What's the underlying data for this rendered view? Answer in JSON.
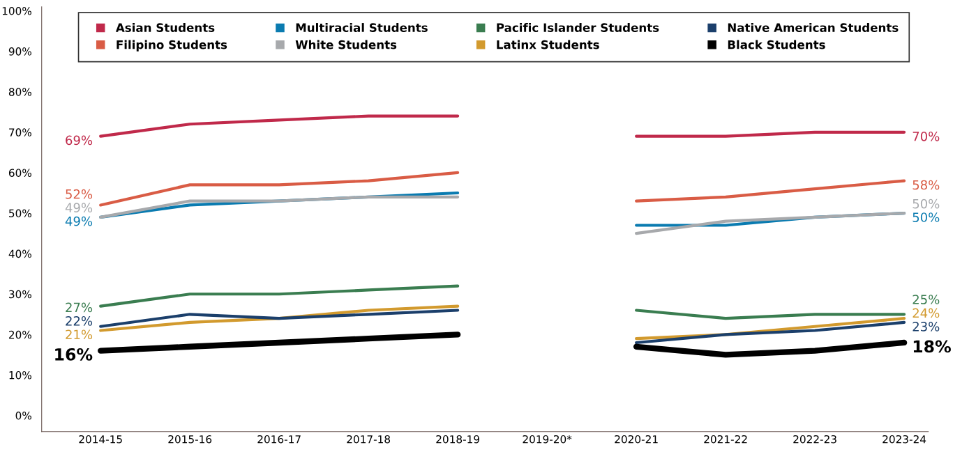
{
  "chart_data": {
    "type": "line",
    "categories": [
      "2014-15",
      "2015-16",
      "2016-17",
      "2017-18",
      "2018-19",
      "2019-20*",
      "2020-21",
      "2021-22",
      "2022-23",
      "2023-24"
    ],
    "series": [
      {
        "name": "Asian Students",
        "color": "#c0294a",
        "values": [
          69,
          72,
          73,
          74,
          74,
          null,
          69,
          69,
          70,
          70
        ],
        "value_labels": [
          "69%",
          null,
          null,
          null,
          null,
          null,
          null,
          null,
          null,
          "70%"
        ]
      },
      {
        "name": "Filipino Students",
        "color": "#d95c45",
        "values": [
          52,
          57,
          57,
          58,
          60,
          null,
          53,
          54,
          56,
          58
        ],
        "value_labels": [
          "52%",
          null,
          null,
          null,
          null,
          null,
          null,
          null,
          null,
          "58%"
        ]
      },
      {
        "name": "Multiracial Students",
        "color": "#0a7bb0",
        "values": [
          49,
          52,
          53,
          54,
          55,
          null,
          47,
          47,
          49,
          50
        ],
        "value_labels": [
          "49%",
          null,
          null,
          null,
          null,
          null,
          null,
          null,
          null,
          "50%"
        ]
      },
      {
        "name": "White Students",
        "color": "#a7a9ac",
        "values": [
          49,
          53,
          53,
          54,
          54,
          null,
          45,
          48,
          49,
          50
        ],
        "value_labels": [
          "49%",
          null,
          null,
          null,
          null,
          null,
          null,
          null,
          null,
          "50%"
        ]
      },
      {
        "name": "Pacific Islander Students",
        "color": "#3a7d50",
        "values": [
          27,
          30,
          30,
          31,
          32,
          null,
          26,
          24,
          25,
          25
        ],
        "value_labels": [
          "27%",
          null,
          null,
          null,
          null,
          null,
          null,
          null,
          null,
          "25%"
        ]
      },
      {
        "name": "Latinx Students",
        "color": "#d29a2e",
        "values": [
          21,
          23,
          24,
          26,
          27,
          null,
          19,
          20,
          22,
          24
        ],
        "value_labels": [
          "21%",
          null,
          null,
          null,
          null,
          null,
          null,
          null,
          null,
          "24%"
        ]
      },
      {
        "name": "Native American Students",
        "color": "#1b3f6b",
        "values": [
          22,
          25,
          24,
          25,
          26,
          null,
          18,
          20,
          21,
          23
        ],
        "value_labels": [
          "22%",
          null,
          null,
          null,
          null,
          null,
          null,
          null,
          null,
          "23%"
        ]
      },
      {
        "name": "Black Students",
        "color": "#000000",
        "values": [
          16,
          17,
          18,
          19,
          20,
          null,
          17,
          15,
          16,
          18
        ],
        "value_labels": [
          "16%",
          null,
          null,
          null,
          null,
          null,
          null,
          null,
          null,
          "18%"
        ]
      }
    ],
    "ylim": [
      -4,
      101
    ],
    "yticks": [
      {
        "value": 0,
        "label": "0%"
      },
      {
        "value": 10,
        "label": "10%"
      },
      {
        "value": 20,
        "label": "20%"
      },
      {
        "value": 30,
        "label": "30%"
      },
      {
        "value": 40,
        "label": "40%"
      },
      {
        "value": 50,
        "label": "50%"
      },
      {
        "value": 60,
        "label": "60%"
      },
      {
        "value": 70,
        "label": "70%"
      },
      {
        "value": 80,
        "label": "80%"
      },
      {
        "value": 90,
        "label": "90%"
      },
      {
        "value": 100,
        "label": "100%"
      }
    ],
    "grid": false,
    "legend": "top",
    "marker": "none",
    "line_style": "solid"
  }
}
